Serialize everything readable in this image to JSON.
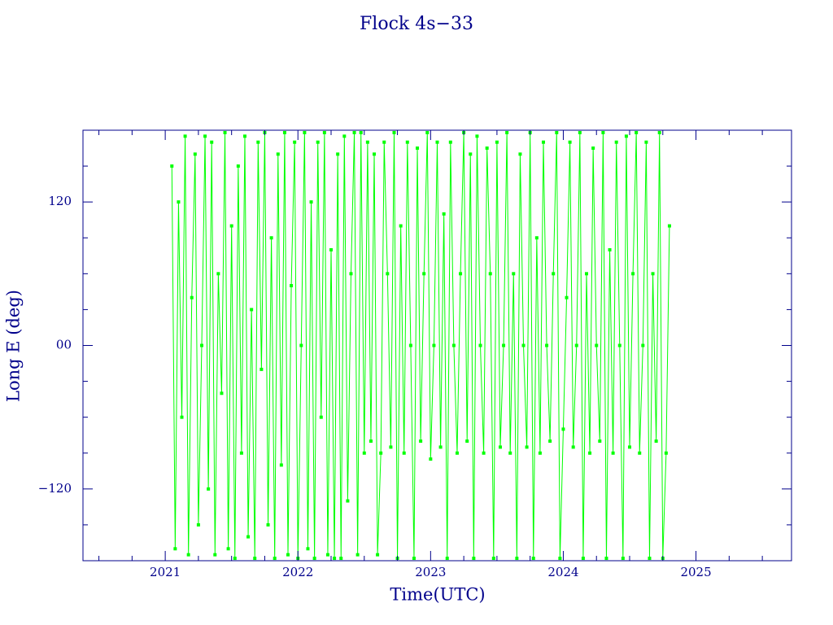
{
  "chart_data": {
    "type": "line",
    "title": "Flock 4s−33",
    "xlabel": "Time(UTC)",
    "ylabel": "Long E (deg)",
    "xlim": [
      2020.38,
      2025.72
    ],
    "xticks": [
      2021,
      2022,
      2023,
      2024,
      2025
    ],
    "xminorticks": [
      2020.5,
      2020.75,
      2021.25,
      2021.5,
      2021.75,
      2022.25,
      2022.5,
      2022.75,
      2023.25,
      2023.5,
      2023.75,
      2024.25,
      2024.5,
      2024.75,
      2025.25,
      2025.5
    ],
    "ylim": [
      -180,
      180
    ],
    "yticks": [
      {
        "value": -120,
        "label": "−120"
      },
      {
        "value": 0,
        "label": "00"
      },
      120
    ],
    "yminorticks": [
      -150,
      -90,
      -60,
      -30,
      30,
      60,
      90,
      150
    ],
    "series": [
      {
        "color": "#00ff00",
        "x": [
          2021.05,
          2021.075,
          2021.1,
          2021.125,
          2021.15,
          2021.175,
          2021.2,
          2021.225,
          2021.25,
          2021.275,
          2021.3,
          2021.325,
          2021.35,
          2021.375,
          2021.4,
          2021.425,
          2021.45,
          2021.475,
          2021.5,
          2021.525,
          2021.55,
          2021.575,
          2021.6,
          2021.625,
          2021.65,
          2021.675,
          2021.7,
          2021.725,
          2021.75,
          2021.775,
          2021.8,
          2021.825,
          2021.85,
          2021.875,
          2021.9,
          2021.925,
          2021.95,
          2021.975,
          2022.0,
          2022.025,
          2022.05,
          2022.075,
          2022.1,
          2022.125,
          2022.15,
          2022.175,
          2022.2,
          2022.225,
          2022.25,
          2022.275,
          2022.3,
          2022.325,
          2022.35,
          2022.375,
          2022.4,
          2022.425,
          2022.45,
          2022.475,
          2022.5,
          2022.525,
          2022.55,
          2022.575,
          2022.6,
          2022.625,
          2022.65,
          2022.675,
          2022.7,
          2022.725,
          2022.75,
          2022.775,
          2022.8,
          2022.825,
          2022.85,
          2022.875,
          2022.9,
          2022.925,
          2022.95,
          2022.975,
          2023.0,
          2023.025,
          2023.05,
          2023.075,
          2023.1,
          2023.125,
          2023.15,
          2023.175,
          2023.2,
          2023.225,
          2023.25,
          2023.275,
          2023.3,
          2023.325,
          2023.35,
          2023.375,
          2023.4,
          2023.425,
          2023.45,
          2023.475,
          2023.5,
          2023.525,
          2023.55,
          2023.575,
          2023.6,
          2023.625,
          2023.65,
          2023.675,
          2023.7,
          2023.725,
          2023.75,
          2023.775,
          2023.8,
          2023.825,
          2023.85,
          2023.875,
          2023.9,
          2023.925,
          2023.95,
          2023.975,
          2024.0,
          2024.025,
          2024.05,
          2024.075,
          2024.1,
          2024.125,
          2024.15,
          2024.175,
          2024.2,
          2024.225,
          2024.25,
          2024.275,
          2024.3,
          2024.325,
          2024.35,
          2024.375,
          2024.4,
          2024.425,
          2024.45,
          2024.475,
          2024.5,
          2024.525,
          2024.55,
          2024.575,
          2024.6,
          2024.625,
          2024.65,
          2024.675,
          2024.7,
          2024.725,
          2024.75,
          2024.775,
          2024.8
        ],
        "values": [
          150,
          -170,
          120,
          -60,
          175,
          -175,
          40,
          160,
          -150,
          0,
          175,
          -120,
          170,
          -175,
          60,
          -40,
          178,
          -170,
          100,
          -178,
          150,
          -90,
          175,
          -160,
          30,
          -178,
          170,
          -20,
          178,
          -150,
          90,
          -178,
          160,
          -100,
          178,
          -175,
          50,
          170,
          -178,
          0,
          178,
          -170,
          120,
          -178,
          170,
          -60,
          178,
          -175,
          80,
          -178,
          160,
          -178,
          175,
          -130,
          60,
          178,
          -175,
          178,
          -90,
          170,
          -80,
          160,
          -175,
          -90,
          170,
          60,
          -85,
          178,
          -178,
          100,
          -90,
          170,
          0,
          -178,
          165,
          -80,
          60,
          178,
          -95,
          0,
          170,
          -85,
          110,
          -178,
          170,
          0,
          -90,
          60,
          178,
          -80,
          160,
          -178,
          175,
          0,
          -90,
          165,
          60,
          -178,
          170,
          -85,
          0,
          178,
          -90,
          60,
          -178,
          160,
          0,
          -85,
          178,
          -178,
          90,
          -90,
          170,
          0,
          -80,
          60,
          178,
          -178,
          -70,
          40,
          170,
          -85,
          0,
          178,
          -178,
          60,
          -90,
          165,
          0,
          -80,
          178,
          -178,
          80,
          -90,
          170,
          0,
          -178,
          175,
          -85,
          60,
          178,
          -90,
          0,
          170,
          -178,
          60,
          -80,
          178,
          -178,
          -90,
          100
        ]
      }
    ]
  }
}
